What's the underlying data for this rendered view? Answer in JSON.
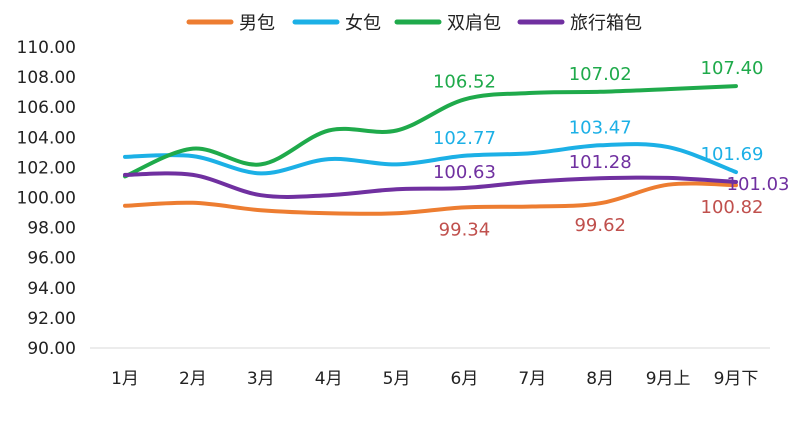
{
  "chart_data": {
    "type": "line",
    "title": "",
    "xlabel": "",
    "ylabel": "",
    "categories": [
      "1月",
      "2月",
      "3月",
      "4月",
      "5月",
      "6月",
      "7月",
      "8月",
      "9月上",
      "9月下"
    ],
    "ylim": [
      90,
      110
    ],
    "yticks": [
      "110.00",
      "108.00",
      "106.00",
      "104.00",
      "102.00",
      "100.00",
      "98.00",
      "96.00",
      "94.00",
      "92.00",
      "90.00"
    ],
    "grid": false,
    "legend": "top",
    "series": [
      {
        "name": "男包",
        "color": "#ED7D31",
        "label_color": "#C0504D",
        "values": [
          99.45,
          99.65,
          99.15,
          98.95,
          98.95,
          99.34,
          99.4,
          99.62,
          100.85,
          100.82
        ],
        "labels": [
          "",
          "",
          "",
          "",
          "",
          "99.34",
          "",
          "99.62",
          "",
          "100.82"
        ]
      },
      {
        "name": "女包",
        "color": "#1CB0E6",
        "label_color": "#1CB0E6",
        "values": [
          102.7,
          102.75,
          101.6,
          102.55,
          102.2,
          102.77,
          102.95,
          103.47,
          103.35,
          101.69
        ],
        "labels": [
          "",
          "",
          "",
          "",
          "",
          "102.77",
          "",
          "103.47",
          "",
          "101.69"
        ]
      },
      {
        "name": "双肩包",
        "color": "#1FAA4B",
        "label_color": "#1FAA4B",
        "values": [
          101.4,
          103.25,
          102.2,
          104.45,
          104.45,
          106.52,
          106.95,
          107.02,
          107.2,
          107.4
        ],
        "labels": [
          "",
          "",
          "",
          "",
          "",
          "106.52",
          "",
          "107.02",
          "",
          "107.40"
        ]
      },
      {
        "name": "旅行箱包",
        "color": "#7030A0",
        "label_color": "#7030A0",
        "values": [
          101.5,
          101.5,
          100.15,
          100.15,
          100.55,
          100.63,
          101.05,
          101.28,
          101.3,
          101.03
        ],
        "labels": [
          "",
          "",
          "",
          "",
          "",
          "100.63",
          "",
          "101.28",
          "",
          "101.03"
        ]
      }
    ]
  }
}
